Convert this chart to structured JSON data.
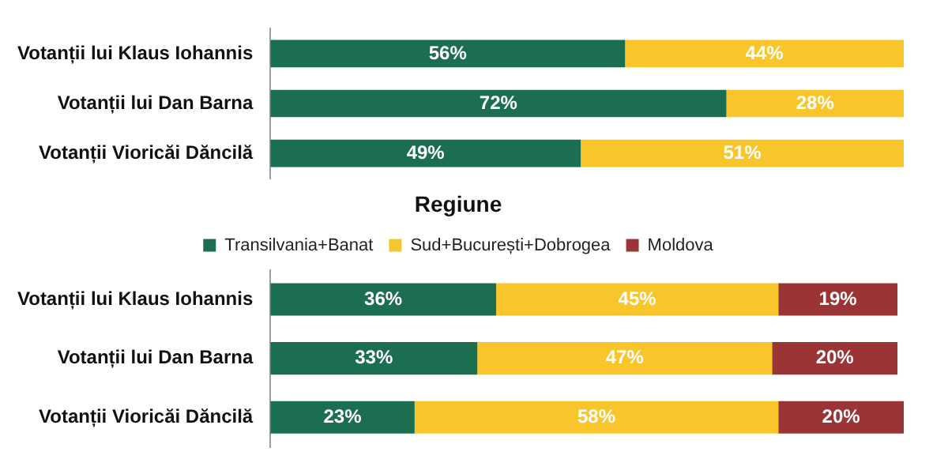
{
  "chart_data": [
    {
      "type": "bar",
      "orientation": "horizontal",
      "stacked": true,
      "categories": [
        "Votanții lui Klaus Iohannis",
        "Votanții lui Dan Barna",
        "Votanții Vioricăi Dăncilă"
      ],
      "xlim": [
        0,
        100
      ],
      "tick_labels": "y",
      "grid": false,
      "legend": false,
      "series": [
        {
          "color": "#1b6e50",
          "values": [
            56,
            72,
            49
          ],
          "value_labels": [
            "56%",
            "72%",
            "49%"
          ]
        },
        {
          "color": "#f8c52a",
          "values": [
            44,
            28,
            51
          ],
          "value_labels": [
            "44%",
            "28%",
            "51%"
          ]
        }
      ]
    },
    {
      "type": "bar",
      "orientation": "horizontal",
      "stacked": true,
      "legend_title": "Regiune",
      "categories": [
        "Votanții lui Klaus Iohannis",
        "Votanții lui Dan Barna",
        "Votanții Vioricăi Dăncilă"
      ],
      "xlim": [
        0,
        101
      ],
      "tick_labels": "y",
      "grid": false,
      "legend": "top",
      "series": [
        {
          "name": "Transilvania+Banat",
          "color": "#1b6e50",
          "values": [
            36,
            33,
            23
          ],
          "value_labels": [
            "36%",
            "33%",
            "23%"
          ]
        },
        {
          "name": "Sud+București+Dobrogea",
          "color": "#f8c52a",
          "values": [
            45,
            47,
            58
          ],
          "value_labels": [
            "45%",
            "47%",
            "58%"
          ]
        },
        {
          "name": "Moldova",
          "color": "#9b3535",
          "values": [
            19,
            20,
            20
          ],
          "value_labels": [
            "19%",
            "20%",
            "20%"
          ]
        }
      ]
    }
  ]
}
